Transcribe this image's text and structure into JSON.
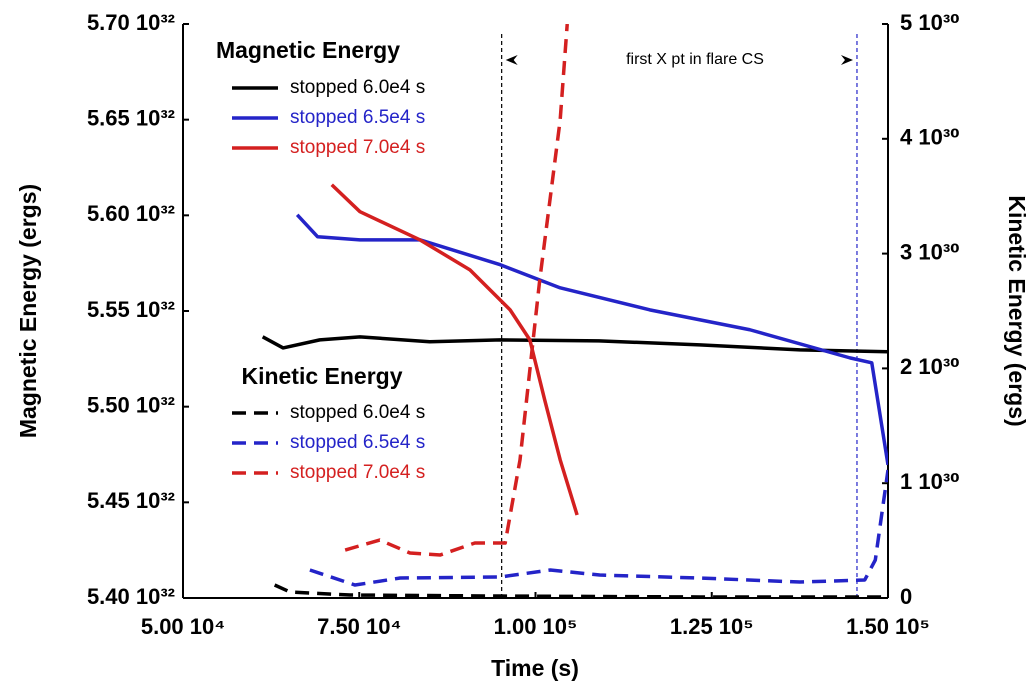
{
  "chart_data": {
    "type": "line",
    "xlabel": "Time (s)",
    "ylabel": "Magnetic Energy (ergs)",
    "y2label": "Kinetic Energy (ergs)",
    "legend_titles": [
      "Magnetic Energy",
      "Kinetic Energy"
    ],
    "xlim": [
      50000,
      150000
    ],
    "xticks": [
      {
        "value": 50000,
        "label": "5.00 10⁴"
      },
      {
        "value": 75000,
        "label": "7.50 10⁴"
      },
      {
        "value": 100000,
        "label": "1.00 10⁵"
      },
      {
        "value": 125000,
        "label": "1.25 10⁵"
      },
      {
        "value": 150000,
        "label": "1.50 10⁵"
      }
    ],
    "ylim": [
      5.4e+32,
      5.7e+32
    ],
    "yticks": [
      {
        "value": 5.4e+32,
        "label": "5.40 10³²"
      },
      {
        "value": 5.45e+32,
        "label": "5.45 10³²"
      },
      {
        "value": 5.5e+32,
        "label": "5.50 10³²"
      },
      {
        "value": 5.55e+32,
        "label": "5.55 10³²"
      },
      {
        "value": 5.6e+32,
        "label": "5.60 10³²"
      },
      {
        "value": 5.65e+32,
        "label": "5.65 10³²"
      },
      {
        "value": 5.7e+32,
        "label": "5.70 10³²"
      }
    ],
    "y2lim": [
      0,
      5e+30
    ],
    "y2ticks": [
      0,
      {
        "value": 1e+30,
        "label": "1 10³⁰"
      },
      {
        "value": 2e+30,
        "label": "2 10³⁰"
      },
      {
        "value": 3e+30,
        "label": "3 10³⁰"
      },
      {
        "value": 4e+30,
        "label": "4 10³⁰"
      },
      {
        "value": 5e+30,
        "label": "5 10³⁰"
      }
    ],
    "annotation": {
      "text": "first X pt in flare CS",
      "x": [
        95200,
        145600
      ]
    },
    "series": [
      {
        "name": "stopped 6.0e4 s",
        "color": "#000000",
        "line_style": "solid",
        "x": [
          61300,
          64200,
          69400,
          75100,
          85000,
          95000,
          109000,
          123300,
          137500,
          150000
        ],
        "values": [
          5.5365e+32,
          5.5307e+32,
          5.5349e+32,
          5.5365e+32,
          5.5339e+32,
          5.5349e+32,
          5.5344e+32,
          5.5323e+32,
          5.5297e+32,
          5.5287e+32
        ]
      },
      {
        "name": "stopped 6.5e4 s",
        "color": "#2424c8",
        "line_style": "solid",
        "x": [
          66200,
          69100,
          75100,
          83600,
          95000,
          103500,
          116200,
          130400,
          144600,
          147700,
          150000
        ],
        "values": [
          5.6003e+32,
          5.5888e+32,
          5.5872e+32,
          5.5872e+32,
          5.5742e+32,
          5.5621e+32,
          5.5506e+32,
          5.5402e+32,
          5.5255e+32,
          5.5229e+32,
          5.4696e+32
        ]
      },
      {
        "name": "stopped 7.0e4 s",
        "color": "#d42020",
        "line_style": "solid",
        "x": [
          71100,
          75100,
          83600,
          90700,
          96400,
          99200,
          101300,
          103500,
          105900
        ],
        "values": [
          5.616e+32,
          5.6019e+32,
          5.5872e+32,
          5.5715e+32,
          5.5506e+32,
          5.5349e+32,
          5.5036e+32,
          5.4722e+32,
          5.4434e+32
        ]
      },
      {
        "name": "stopped 6.0e4 s",
        "color": "#000000",
        "line_style": "dashed",
        "axis": "y2",
        "x": [
          63000,
          65200,
          73700,
          95000,
          123300,
          150000
        ],
        "values": [
          1.13e+29,
          5.2e+28,
          2.6e+28,
          1.7e+28,
          9e+27,
          9e+27
        ]
      },
      {
        "name": "stopped 6.5e4 s",
        "color": "#2424c8",
        "line_style": "dashed",
        "axis": "y2",
        "x": [
          68000,
          74400,
          80800,
          95000,
          102100,
          109100,
          123300,
          137500,
          146700,
          148200,
          150000
        ],
        "values": [
          2.44e+29,
          1.13e+29,
          1.74e+29,
          1.83e+29,
          2.44e+29,
          2e+29,
          1.74e+29,
          1.39e+29,
          1.57e+29,
          3.31e+29,
          1.115e+30
        ]
      },
      {
        "name": "stopped 7.0e4 s",
        "color": "#d42020",
        "line_style": "dashed",
        "axis": "y2",
        "x": [
          73000,
          77900,
          82200,
          86500,
          91400,
          95700,
          97800,
          100600,
          103500,
          104500
        ],
        "values": [
          4.18e+29,
          5.05e+29,
          3.92e+29,
          3.75e+29,
          4.79e+29,
          4.79e+29,
          1.202e+30,
          2.77e+30,
          4.164e+30,
          5e+30
        ]
      }
    ]
  }
}
